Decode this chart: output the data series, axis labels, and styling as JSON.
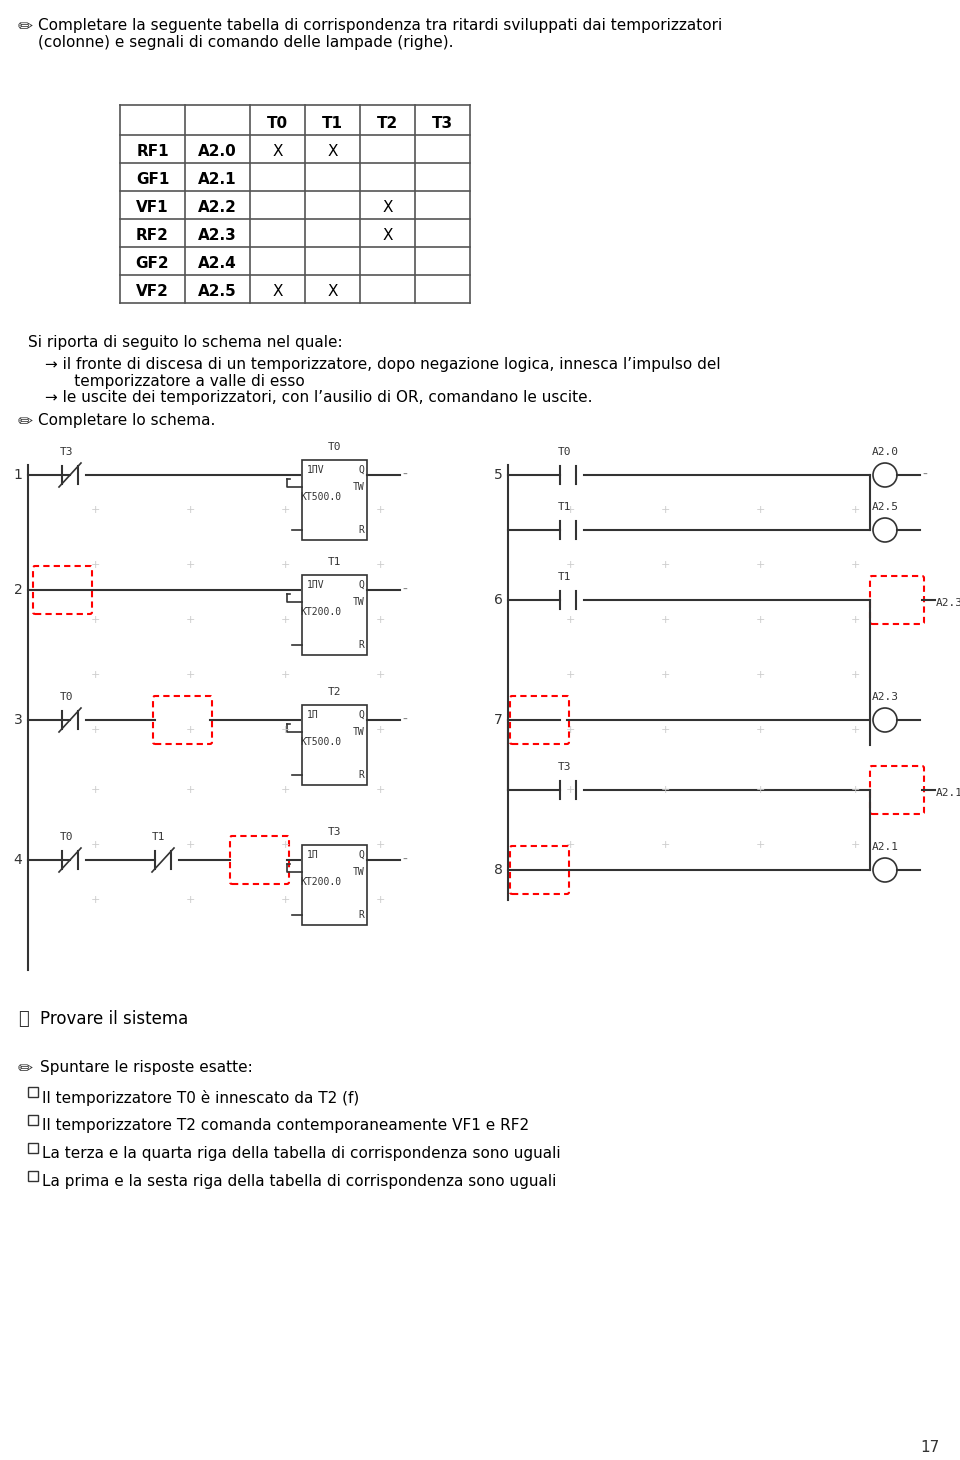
{
  "title_text": "Completare la seguente tabella di corrispondenza tra ritardi sviluppati dai temporizzatori\n(colonne) e segnali di comando delle lampade (righe).",
  "table_headers": [
    "",
    "",
    "T0",
    "T1",
    "T2",
    "T3"
  ],
  "table_rows": [
    [
      "RF1",
      "A2.0",
      "X",
      "X",
      "",
      ""
    ],
    [
      "GF1",
      "A2.1",
      "",
      "",
      "",
      ""
    ],
    [
      "VF1",
      "A2.2",
      "",
      "",
      "X",
      ""
    ],
    [
      "RF2",
      "A2.3",
      "",
      "",
      "X",
      ""
    ],
    [
      "GF2",
      "A2.4",
      "",
      "",
      "",
      ""
    ],
    [
      "VF2",
      "A2.5",
      "X",
      "X",
      "",
      ""
    ]
  ],
  "schema_text_1": "Si riporta di seguito lo schema nel quale:",
  "schema_bullet_1": "→ il fronte di discesa di un temporizzatore, dopo negazione logica, innesca l’impulso del\n      temporizzatore a valle di esso",
  "schema_bullet_2": "→ le uscite dei temporizzatori, con l’ausilio di OR, comandano le uscite.",
  "completare_text": "Completare lo schema.",
  "provare_text": "Provare il sistema",
  "spuntare_text": "Spuntare le risposte esatte:",
  "checkbox_items": [
    "Il temporizzatore T0 è innescato da T2 (f)",
    "Il temporizzatore T2 comanda contemporaneamente VF1 e RF2",
    "La terza e la quarta riga della tabella di corrispondenza sono uguali",
    "La prima e la sesta riga della tabella di corrispondenza sono uguali"
  ],
  "page_number": "17",
  "bg_color": "#ffffff",
  "text_color": "#000000",
  "grid_color": "#888888",
  "dashed_red": "#ff0000"
}
